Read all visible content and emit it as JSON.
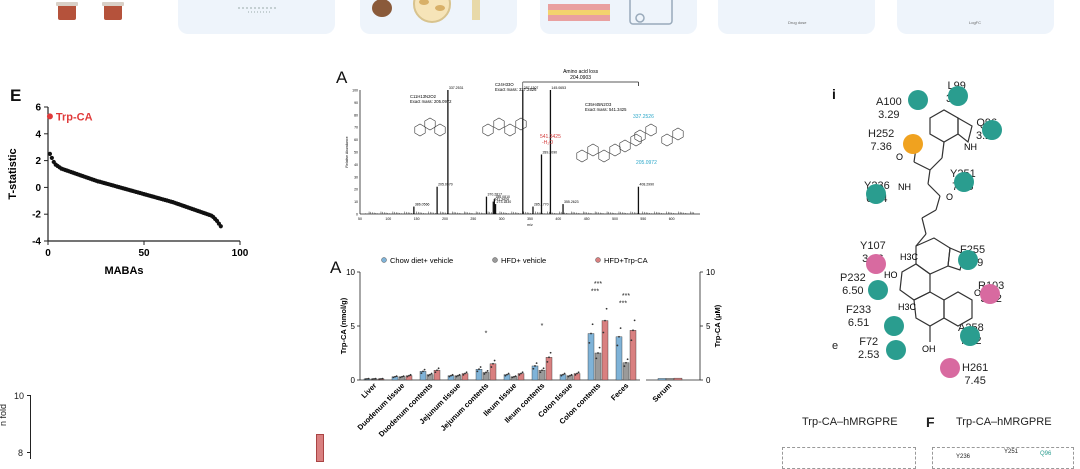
{
  "top_strip": {
    "cards": [
      {
        "name": "card-1"
      },
      {
        "name": "card-2"
      },
      {
        "name": "card-3"
      },
      {
        "name": "card-4"
      },
      {
        "name": "card-5"
      },
      {
        "name": "card-6"
      }
    ],
    "tiny_captions": [
      "Drug dose",
      "LogFC"
    ]
  },
  "panel_E": {
    "label": "E",
    "highlight": "Trp-CA",
    "highlight_color": "#e03a3a"
  },
  "panel_ms": {
    "label": "A",
    "bracket_label": "Amino acid loss",
    "bracket_value": "204.0903",
    "formulas": [
      {
        "formula": "C11H13N2O2",
        "exact": "Exact mass: 205.0972"
      },
      {
        "formula": "C24H33O",
        "exact": "Exact mass: 337.2526"
      },
      {
        "formula": "C35H45N2O3",
        "exact": "Exact mass: 541.3425"
      }
    ],
    "peak_labels": [
      "386.0566",
      "205.0970",
      "337.2531",
      "370.2817",
      "541.3424",
      "186.0810",
      "273.1830",
      "287.1307",
      "285.1770",
      "289.2090",
      "145.0653",
      "355.2623",
      "408.2990"
    ],
    "annot_red": "541.3425",
    "annot_red2": "-H₂O",
    "annot_cyan1": "337.2526",
    "annot_cyan2": "205.0972",
    "ylabel": "Relative Abundance",
    "xlabel": "m/z",
    "x_ticks": [
      "50",
      "100",
      "150",
      "200",
      "250",
      "300",
      "350",
      "400",
      "450",
      "500",
      "550",
      "600"
    ],
    "y_ticks": [
      "100",
      "90",
      "80",
      "70",
      "60",
      "50",
      "40",
      "30",
      "20",
      "10",
      "0"
    ]
  },
  "panel_bar": {
    "label": "A",
    "ylabel_left": "Trp-CA (nmol/g)",
    "ylabel_right": "Trp-CA (μM)",
    "sig_marks": [
      "*",
      "*",
      "***",
      "***",
      "***",
      "***"
    ],
    "colors": {
      "chow": "#7fb3d8",
      "hfd": "#9a9a9a",
      "trp": "#d98080"
    }
  },
  "panel_dock": {
    "label": "i",
    "residues": [
      {
        "name": "A100",
        "value": "3.29",
        "color": "#2a9d8f"
      },
      {
        "name": "L99",
        "value": "3.28",
        "color": "#2a9d8f"
      },
      {
        "name": "Q96",
        "value": "3.25",
        "color": "#2a9d8f"
      },
      {
        "name": "H252",
        "value": "7.36",
        "color": "#f0a21f"
      },
      {
        "name": "Y251",
        "value": "7.35",
        "color": "#2a9d8f"
      },
      {
        "name": "Y236",
        "value": "6.54",
        "color": "#2a9d8f"
      },
      {
        "name": "Y107",
        "value": "3.36",
        "color": "#d86aa0"
      },
      {
        "name": "F255",
        "value": "7.39",
        "color": "#2a9d8f"
      },
      {
        "name": "P232",
        "value": "6.50",
        "color": "#2a9d8f"
      },
      {
        "name": "R103",
        "value": "3.32",
        "color": "#d86aa0"
      },
      {
        "name": "F233",
        "value": "6.51",
        "color": "#2a9d8f"
      },
      {
        "name": "A258",
        "value": "7.42",
        "color": "#2a9d8f"
      },
      {
        "name": "F72",
        "value": "2.53",
        "color": "#2a9d8f"
      },
      {
        "name": "H261",
        "value": "7.45",
        "color": "#d86aa0"
      }
    ],
    "atoms": [
      "OH",
      "O",
      "NH",
      "NH",
      "O",
      "H3C",
      "HO",
      "H3C",
      "OH",
      "OH"
    ],
    "side_e": "e"
  },
  "bottom": {
    "ylabel_fold": "n fold",
    "yticks": [
      "10",
      "8"
    ],
    "title1": "Trp-CA–hMRGPRE",
    "label_F": "F",
    "title2": "Trp-CA–hMRGPRE",
    "tiny_residues": [
      "Y236",
      "Y251",
      "Q96"
    ]
  },
  "chart_data": [
    {
      "type": "scatter",
      "title": "",
      "xlabel": "MABAs",
      "ylabel": "T-statistic",
      "xlim": [
        0,
        100
      ],
      "ylim": [
        -4,
        6
      ],
      "x_ticks": [
        "0",
        "50",
        "100"
      ],
      "y_ticks": [
        "6",
        "4",
        "2",
        "0",
        "-2",
        "-4"
      ],
      "highlight": {
        "label": "Trp-CA",
        "x": 1,
        "y": 5.3
      },
      "x": [
        1,
        2,
        3,
        4,
        5,
        6,
        7,
        8,
        9,
        10,
        11,
        12,
        13,
        14,
        15,
        16,
        17,
        18,
        19,
        20,
        21,
        22,
        23,
        24,
        25,
        26,
        27,
        28,
        29,
        30,
        31,
        32,
        33,
        34,
        35,
        36,
        37,
        38,
        39,
        40,
        41,
        42,
        43,
        44,
        45,
        46,
        47,
        48,
        49,
        50,
        51,
        52,
        53,
        54,
        55,
        56,
        57,
        58,
        59,
        60,
        61,
        62,
        63,
        64,
        65,
        66,
        67,
        68,
        69,
        70,
        71,
        72,
        73,
        74,
        75,
        76,
        77,
        78,
        79,
        80,
        81,
        82,
        83,
        84,
        85,
        86,
        87,
        88,
        89,
        90
      ],
      "values": [
        2.5,
        2.2,
        1.9,
        1.7,
        1.6,
        1.5,
        1.4,
        1.35,
        1.3,
        1.25,
        1.2,
        1.15,
        1.1,
        1.05,
        1.0,
        0.95,
        0.9,
        0.85,
        0.8,
        0.75,
        0.7,
        0.65,
        0.6,
        0.55,
        0.5,
        0.45,
        0.42,
        0.38,
        0.34,
        0.3,
        0.26,
        0.22,
        0.18,
        0.14,
        0.1,
        0.06,
        0.02,
        -0.02,
        -0.06,
        -0.1,
        -0.14,
        -0.18,
        -0.22,
        -0.26,
        -0.3,
        -0.34,
        -0.38,
        -0.42,
        -0.46,
        -0.5,
        -0.54,
        -0.58,
        -0.62,
        -0.66,
        -0.7,
        -0.74,
        -0.78,
        -0.82,
        -0.86,
        -0.9,
        -0.94,
        -0.98,
        -1.02,
        -1.06,
        -1.1,
        -1.15,
        -1.2,
        -1.25,
        -1.3,
        -1.35,
        -1.4,
        -1.45,
        -1.5,
        -1.55,
        -1.6,
        -1.65,
        -1.7,
        -1.75,
        -1.8,
        -1.85,
        -1.9,
        -1.95,
        -2.0,
        -2.05,
        -2.1,
        -2.2,
        -2.35,
        -2.5,
        -2.7,
        -2.9
      ]
    },
    {
      "type": "bar",
      "title": "",
      "xlabel": "m/z",
      "ylabel": "Relative Abundance",
      "xlim": [
        50,
        650
      ],
      "ylim": [
        0,
        100
      ],
      "x": [
        145.07,
        186.08,
        205.1,
        273.18,
        285.18,
        287.13,
        289.21,
        337.25,
        355.26,
        370.28,
        386.06,
        408.3,
        541.34
      ],
      "values": [
        6,
        22,
        100,
        14,
        10,
        12,
        8,
        100,
        6,
        48,
        100,
        8,
        22
      ]
    },
    {
      "type": "bar",
      "title": "",
      "ylabel": "Trp-CA (nmol/g)",
      "ylim": [
        0,
        10
      ],
      "y_ticks": [
        "10",
        "5",
        "0"
      ],
      "categories": [
        "Liver",
        "Duodenum tissue",
        "Duodenum contents",
        "Jejunum tissue",
        "Jejunum contents",
        "Ileum tissue",
        "Ileum contents",
        "Colon tissue",
        "Colon contents",
        "Feces"
      ],
      "series": [
        {
          "name": "Chow diet+ vehicle",
          "values": [
            0.1,
            0.3,
            0.8,
            0.4,
            1.0,
            0.5,
            1.3,
            0.5,
            4.3,
            4.0
          ]
        },
        {
          "name": "HFD+ vehicle",
          "values": [
            0.1,
            0.3,
            0.5,
            0.4,
            0.7,
            0.3,
            0.9,
            0.4,
            2.5,
            1.6
          ]
        },
        {
          "name": "HFD+Trp-CA",
          "values": [
            0.1,
            0.4,
            0.9,
            0.6,
            1.5,
            0.6,
            2.1,
            0.6,
            5.5,
            4.6
          ]
        }
      ]
    },
    {
      "type": "bar",
      "title": "",
      "ylabel": "Trp-CA (μM)",
      "ylim": [
        0,
        10
      ],
      "y_ticks": [
        "10",
        "5",
        "0"
      ],
      "categories": [
        "Serum"
      ],
      "series": [
        {
          "name": "Chow diet+ vehicle",
          "values": [
            0.05
          ]
        },
        {
          "name": "HFD+ vehicle",
          "values": [
            0.05
          ]
        },
        {
          "name": "HFD+Trp-CA",
          "values": [
            0.08
          ]
        }
      ]
    }
  ]
}
